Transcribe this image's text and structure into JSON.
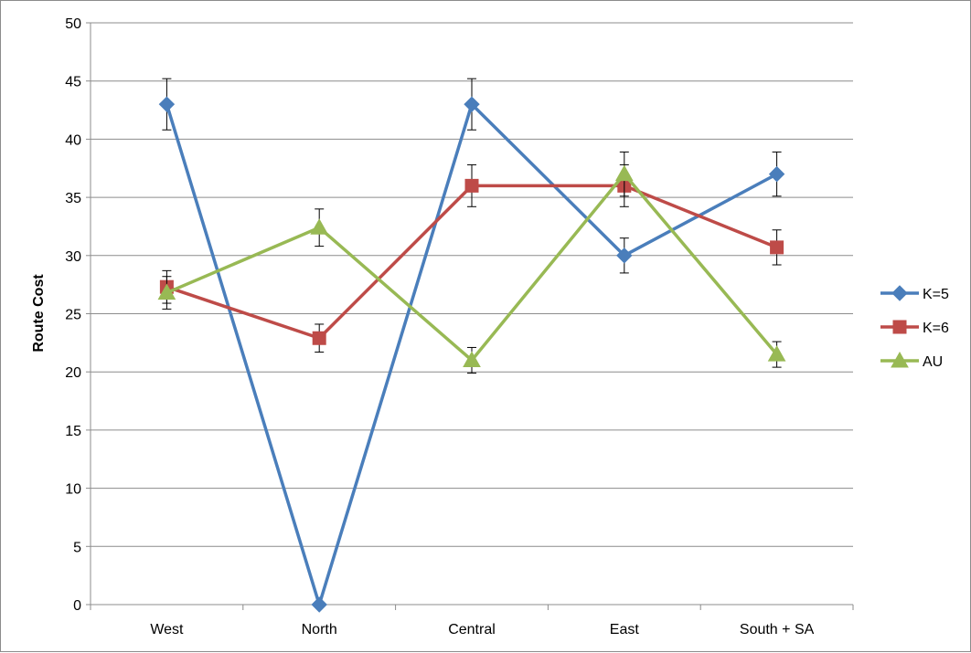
{
  "chart_data": {
    "type": "line",
    "categories": [
      "West",
      "North",
      "Central",
      "East",
      "South + SA"
    ],
    "ylabel": "Route Cost",
    "xlabel": "",
    "ylim": [
      0,
      50
    ],
    "yticks": [
      0,
      5,
      10,
      15,
      20,
      25,
      30,
      35,
      40,
      45,
      50
    ],
    "grid": true,
    "legend_position": "right",
    "error_bars": true,
    "series": [
      {
        "name": "K=5",
        "color": "#4a7ebb",
        "marker": "diamond",
        "values": [
          43,
          0,
          43,
          30,
          37
        ],
        "errors": [
          2.2,
          0,
          2.2,
          1.5,
          1.9
        ]
      },
      {
        "name": "K=6",
        "color": "#be4b48",
        "marker": "square",
        "values": [
          27.3,
          22.9,
          36,
          36,
          30.7
        ],
        "errors": [
          1.4,
          1.2,
          1.8,
          1.8,
          1.5
        ]
      },
      {
        "name": "AU",
        "color": "#98b954",
        "marker": "triangle",
        "values": [
          26.8,
          32.4,
          21,
          37,
          21.5
        ],
        "errors": [
          1.4,
          1.6,
          1.1,
          1.9,
          1.1
        ]
      }
    ]
  }
}
